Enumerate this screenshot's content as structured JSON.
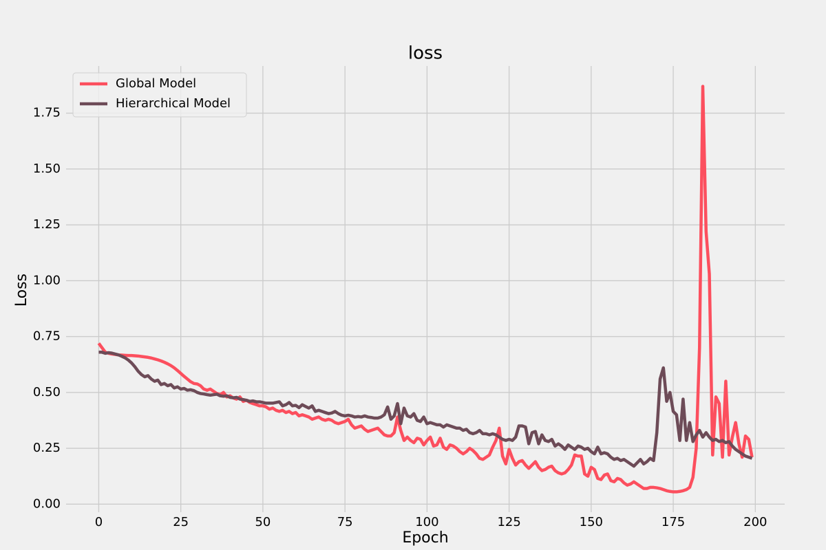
{
  "chart_data": {
    "type": "line",
    "title": "loss",
    "x_label": "Epoch",
    "y_label": "Loss",
    "x": [
      0,
      1,
      2,
      3,
      4,
      5,
      6,
      7,
      8,
      9,
      10,
      11,
      12,
      13,
      14,
      15,
      16,
      17,
      18,
      19,
      20,
      21,
      22,
      23,
      24,
      25,
      26,
      27,
      28,
      29,
      30,
      31,
      32,
      33,
      34,
      35,
      36,
      37,
      38,
      39,
      40,
      41,
      42,
      43,
      44,
      45,
      46,
      47,
      48,
      49,
      50,
      51,
      52,
      53,
      54,
      55,
      56,
      57,
      58,
      59,
      60,
      61,
      62,
      63,
      64,
      65,
      66,
      67,
      68,
      69,
      70,
      71,
      72,
      73,
      74,
      75,
      76,
      77,
      78,
      79,
      80,
      81,
      82,
      83,
      84,
      85,
      86,
      87,
      88,
      89,
      90,
      91,
      92,
      93,
      94,
      95,
      96,
      97,
      98,
      99,
      100,
      101,
      102,
      103,
      104,
      105,
      106,
      107,
      108,
      109,
      110,
      111,
      112,
      113,
      114,
      115,
      116,
      117,
      118,
      119,
      120,
      121,
      122,
      123,
      124,
      125,
      126,
      127,
      128,
      129,
      130,
      131,
      132,
      133,
      134,
      135,
      136,
      137,
      138,
      139,
      140,
      141,
      142,
      143,
      144,
      145,
      146,
      147,
      148,
      149,
      150,
      151,
      152,
      153,
      154,
      155,
      156,
      157,
      158,
      159,
      160,
      161,
      162,
      163,
      164,
      165,
      166,
      167,
      168,
      169,
      170,
      171,
      172,
      173,
      174,
      175,
      176,
      177,
      178,
      179,
      180,
      181,
      182,
      183,
      184,
      185,
      186,
      187,
      188,
      189,
      190,
      191,
      192,
      193,
      194,
      195,
      196,
      197,
      198,
      199
    ],
    "series": [
      {
        "name": "Global Model",
        "color": "#fc4f5e",
        "values": [
          0.72,
          0.7,
          0.68,
          0.675,
          0.672,
          0.67,
          0.668,
          0.667,
          0.666,
          0.665,
          0.665,
          0.664,
          0.663,
          0.661,
          0.659,
          0.657,
          0.654,
          0.65,
          0.646,
          0.641,
          0.635,
          0.628,
          0.62,
          0.61,
          0.598,
          0.585,
          0.572,
          0.56,
          0.548,
          0.54,
          0.538,
          0.53,
          0.515,
          0.51,
          0.515,
          0.505,
          0.495,
          0.49,
          0.5,
          0.48,
          0.485,
          0.475,
          0.47,
          0.48,
          0.46,
          0.465,
          0.455,
          0.45,
          0.445,
          0.44,
          0.44,
          0.435,
          0.425,
          0.43,
          0.42,
          0.415,
          0.42,
          0.41,
          0.415,
          0.405,
          0.41,
          0.395,
          0.4,
          0.395,
          0.39,
          0.38,
          0.385,
          0.39,
          0.38,
          0.375,
          0.38,
          0.375,
          0.365,
          0.36,
          0.365,
          0.37,
          0.38,
          0.355,
          0.34,
          0.345,
          0.35,
          0.335,
          0.325,
          0.33,
          0.335,
          0.34,
          0.325,
          0.31,
          0.305,
          0.305,
          0.32,
          0.39,
          0.33,
          0.285,
          0.3,
          0.285,
          0.275,
          0.295,
          0.29,
          0.265,
          0.285,
          0.3,
          0.26,
          0.265,
          0.295,
          0.255,
          0.245,
          0.265,
          0.26,
          0.25,
          0.235,
          0.225,
          0.235,
          0.25,
          0.24,
          0.225,
          0.205,
          0.2,
          0.21,
          0.22,
          0.255,
          0.285,
          0.34,
          0.215,
          0.18,
          0.245,
          0.205,
          0.175,
          0.19,
          0.195,
          0.175,
          0.16,
          0.175,
          0.19,
          0.165,
          0.15,
          0.155,
          0.165,
          0.17,
          0.15,
          0.14,
          0.135,
          0.14,
          0.155,
          0.175,
          0.22,
          0.215,
          0.215,
          0.135,
          0.125,
          0.165,
          0.155,
          0.115,
          0.11,
          0.13,
          0.135,
          0.105,
          0.1,
          0.115,
          0.11,
          0.095,
          0.085,
          0.09,
          0.1,
          0.09,
          0.08,
          0.07,
          0.07,
          0.075,
          0.075,
          0.073,
          0.07,
          0.065,
          0.06,
          0.057,
          0.055,
          0.055,
          0.057,
          0.06,
          0.065,
          0.075,
          0.12,
          0.25,
          0.7,
          1.87,
          1.22,
          1.03,
          0.22,
          0.48,
          0.45,
          0.21,
          0.55,
          0.22,
          0.3,
          0.365,
          0.27,
          0.21,
          0.305,
          0.29,
          0.21
        ]
      },
      {
        "name": "Hierarchical Model",
        "color": "#6d4b57",
        "values": [
          0.68,
          0.68,
          0.675,
          0.678,
          0.676,
          0.672,
          0.668,
          0.662,
          0.655,
          0.645,
          0.632,
          0.615,
          0.595,
          0.58,
          0.57,
          0.575,
          0.56,
          0.55,
          0.555,
          0.535,
          0.54,
          0.53,
          0.535,
          0.52,
          0.525,
          0.515,
          0.518,
          0.51,
          0.512,
          0.508,
          0.5,
          0.495,
          0.493,
          0.49,
          0.488,
          0.49,
          0.492,
          0.485,
          0.483,
          0.485,
          0.478,
          0.476,
          0.478,
          0.47,
          0.468,
          0.465,
          0.46,
          0.462,
          0.458,
          0.458,
          0.455,
          0.452,
          0.452,
          0.452,
          0.455,
          0.458,
          0.44,
          0.445,
          0.455,
          0.44,
          0.442,
          0.432,
          0.445,
          0.437,
          0.43,
          0.44,
          0.415,
          0.42,
          0.415,
          0.41,
          0.405,
          0.408,
          0.415,
          0.405,
          0.398,
          0.395,
          0.398,
          0.395,
          0.39,
          0.392,
          0.39,
          0.395,
          0.39,
          0.388,
          0.385,
          0.385,
          0.39,
          0.4,
          0.435,
          0.38,
          0.395,
          0.45,
          0.36,
          0.43,
          0.395,
          0.39,
          0.405,
          0.375,
          0.37,
          0.39,
          0.36,
          0.365,
          0.36,
          0.355,
          0.355,
          0.345,
          0.355,
          0.35,
          0.345,
          0.34,
          0.34,
          0.33,
          0.335,
          0.32,
          0.315,
          0.32,
          0.33,
          0.315,
          0.315,
          0.31,
          0.315,
          0.31,
          0.3,
          0.29,
          0.285,
          0.29,
          0.285,
          0.3,
          0.35,
          0.35,
          0.345,
          0.27,
          0.32,
          0.325,
          0.27,
          0.31,
          0.285,
          0.28,
          0.29,
          0.26,
          0.27,
          0.26,
          0.245,
          0.265,
          0.255,
          0.245,
          0.26,
          0.255,
          0.245,
          0.25,
          0.235,
          0.225,
          0.255,
          0.225,
          0.23,
          0.225,
          0.21,
          0.2,
          0.205,
          0.195,
          0.2,
          0.19,
          0.18,
          0.17,
          0.185,
          0.2,
          0.18,
          0.19,
          0.205,
          0.195,
          0.32,
          0.56,
          0.61,
          0.46,
          0.5,
          0.415,
          0.4,
          0.285,
          0.47,
          0.285,
          0.365,
          0.28,
          0.31,
          0.33,
          0.3,
          0.32,
          0.3,
          0.285,
          0.29,
          0.28,
          0.285,
          0.275,
          0.28,
          0.26,
          0.245,
          0.235,
          0.225,
          0.215,
          0.21,
          0.205
        ]
      }
    ],
    "xlim": [
      -9.95,
      208.95
    ],
    "ylim": [
      -0.036,
      1.961
    ],
    "xticks": [
      0,
      25,
      50,
      75,
      100,
      125,
      150,
      175,
      200
    ],
    "yticks": [
      {
        "value": 0,
        "label": "0.00"
      },
      {
        "value": 0.25,
        "label": "0.25"
      },
      {
        "value": 0.5,
        "label": "0.50"
      },
      {
        "value": 0.75,
        "label": "0.75"
      },
      {
        "value": 1,
        "label": "1.00"
      },
      {
        "value": 1.25,
        "label": "1.25"
      },
      {
        "value": 1.5,
        "label": "1.50"
      },
      {
        "value": 1.75,
        "label": "1.75"
      }
    ],
    "grid": true,
    "legend": "upper-left"
  }
}
